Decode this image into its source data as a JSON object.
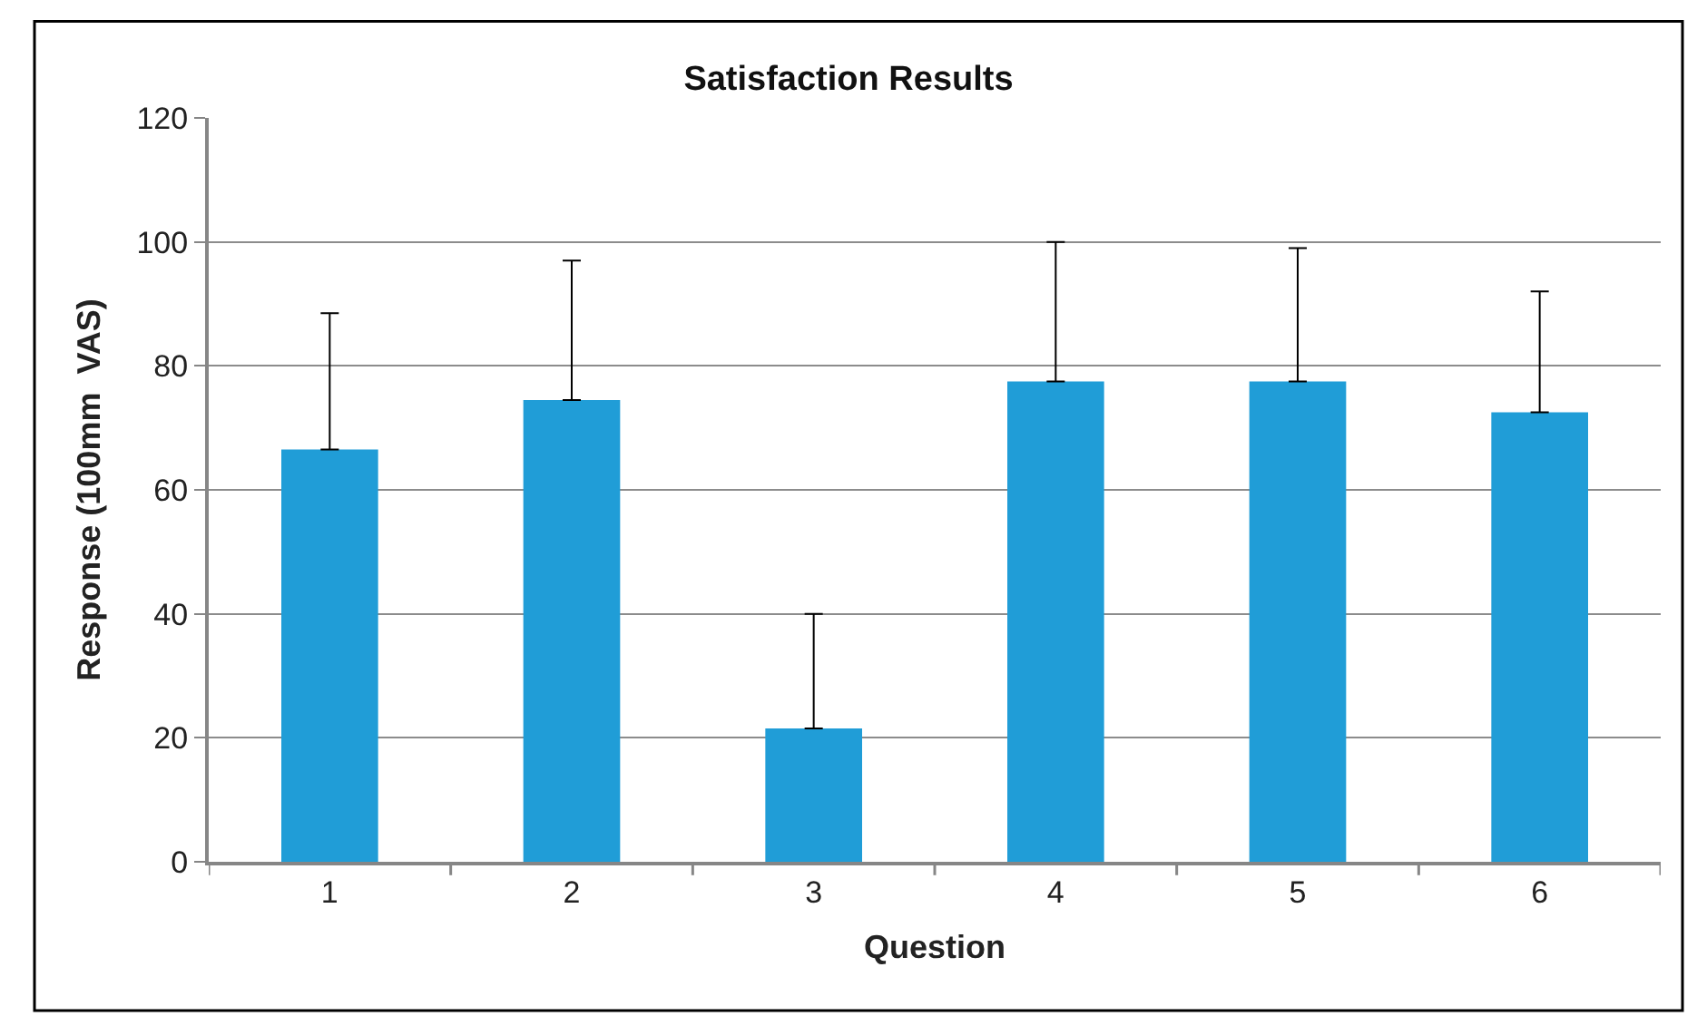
{
  "chart_data": {
    "type": "bar",
    "title": "Satisfaction Results",
    "xlabel": "Question",
    "ylabel": "Response (100mm  VAS)",
    "categories": [
      "1",
      "2",
      "3",
      "4",
      "5",
      "6"
    ],
    "values": [
      66.5,
      74.5,
      21.5,
      77.5,
      77.5,
      72.5
    ],
    "errors": [
      [
        66.5,
        88.5
      ],
      [
        74.5,
        97
      ],
      [
        21.5,
        40
      ],
      [
        77.5,
        100
      ],
      [
        77.5,
        99
      ],
      [
        72.5,
        92
      ]
    ],
    "color": "#209dd7",
    "ylim": [
      0,
      120
    ],
    "yticks": [
      0,
      20,
      40,
      60,
      80,
      100,
      120
    ],
    "grid": "y"
  }
}
